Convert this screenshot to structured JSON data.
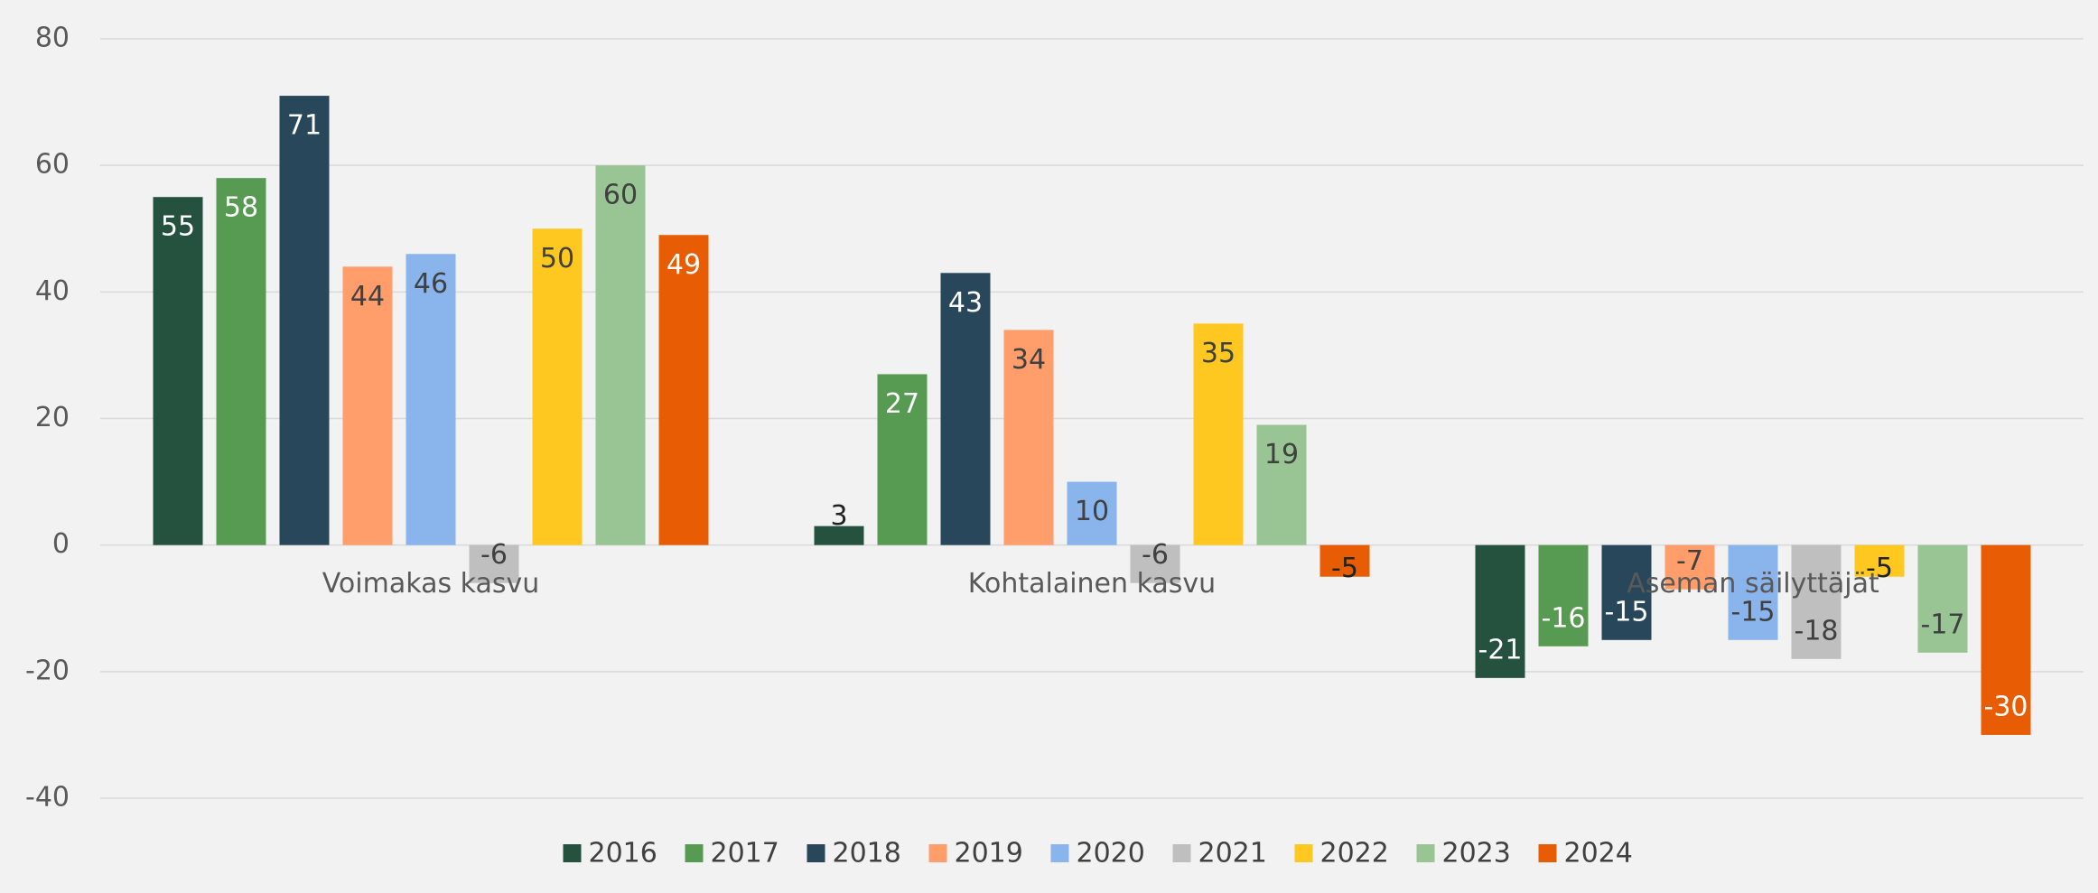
{
  "chart_data": {
    "type": "bar",
    "categories": [
      "Voimakas kasvu",
      "Kohtalainen kasvu",
      "Aseman säilyttäjät"
    ],
    "series": [
      {
        "name": "2016",
        "color": "#25513f",
        "values": [
          55,
          3,
          -21
        ]
      },
      {
        "name": "2017",
        "color": "#579a52",
        "values": [
          58,
          27,
          -16
        ]
      },
      {
        "name": "2018",
        "color": "#29475a",
        "values": [
          71,
          43,
          -15
        ]
      },
      {
        "name": "2019",
        "color": "#ff9d6b",
        "values": [
          44,
          34,
          -7
        ]
      },
      {
        "name": "2020",
        "color": "#8ab4ec",
        "values": [
          46,
          10,
          -15
        ]
      },
      {
        "name": "2021",
        "color": "#bfbfbf",
        "values": [
          -6,
          -6,
          -18
        ]
      },
      {
        "name": "2022",
        "color": "#ffc820",
        "values": [
          50,
          35,
          -5
        ]
      },
      {
        "name": "2023",
        "color": "#98c593",
        "values": [
          60,
          19,
          -17
        ]
      },
      {
        "name": "2024",
        "color": "#e85d04",
        "values": [
          49,
          -5,
          -30
        ]
      }
    ],
    "ylim": [
      -40,
      80
    ],
    "yticks": [
      -40,
      -20,
      0,
      20,
      40,
      60,
      80
    ],
    "grid": true,
    "legend": "bottom"
  }
}
